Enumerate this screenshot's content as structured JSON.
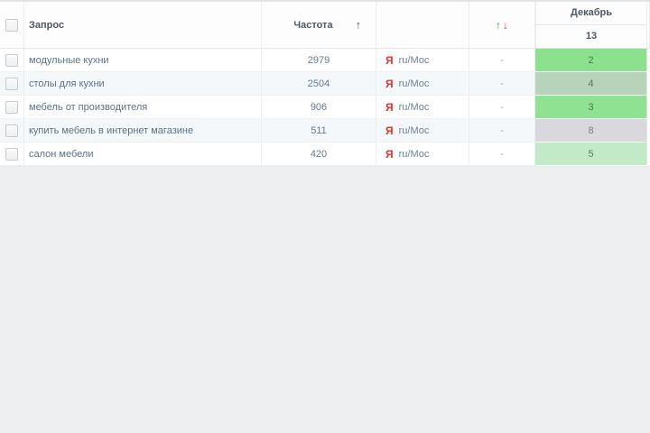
{
  "header": {
    "query_label": "Запрос",
    "frequency_label": "Частота",
    "sort_asc_icon": "↑",
    "dynamics_up_icon": "↑",
    "dynamics_down_icon": "↓",
    "month_label": "Декабрь",
    "day_label": "13"
  },
  "icons": {
    "yandex_letter": "Я"
  },
  "colors": {
    "yandex_red": "#e0332c",
    "dynamics_up_green": "#33a038",
    "dynamics_down_red": "#d2352b",
    "position_green_bright": "#8ce18f",
    "position_green_light": "#c3eac6",
    "position_gray": "#d9d9dd"
  },
  "rows": [
    {
      "query": "модульные кухни",
      "frequency": "2979",
      "searcher": "ru/Мос",
      "dynamics": "-",
      "position": "2",
      "position_bg": "#8ce18f",
      "position_fg": "#527455"
    },
    {
      "query": "столы для кухни",
      "frequency": "2504",
      "searcher": "ru/Мос",
      "dynamics": "-",
      "position": "4",
      "position_bg": "#b7d4ba",
      "position_fg": "#5c6f5e"
    },
    {
      "query": "мебель от производителя",
      "frequency": "906",
      "searcher": "ru/Мос",
      "dynamics": "-",
      "position": "3",
      "position_bg": "#8fe292",
      "position_fg": "#527455"
    },
    {
      "query": "купить мебель в интернет магазине",
      "frequency": "511",
      "searcher": "ru/Мос",
      "dynamics": "-",
      "position": "8",
      "position_bg": "#d9d9dd",
      "position_fg": "#7b7e86"
    },
    {
      "query": "салон мебели",
      "frequency": "420",
      "searcher": "ru/Мос",
      "dynamics": "-",
      "position": "5",
      "position_bg": "#c3eac6",
      "position_fg": "#5a7a5e"
    }
  ]
}
